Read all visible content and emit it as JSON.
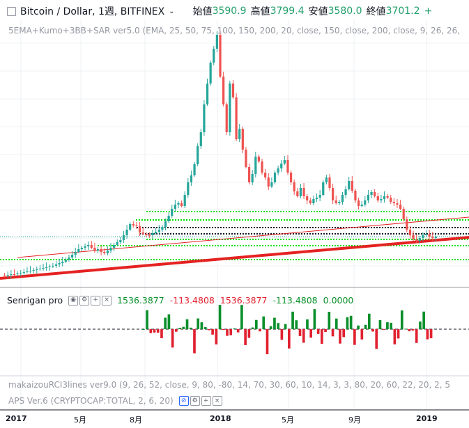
{
  "header": {
    "symbol": "Bitcoin / Dollar, 1週, BITFINEX",
    "dropdown_icon": "chevron-down-icon",
    "open_label": "始値",
    "open_value": "3590.9",
    "high_label": "高値",
    "high_value": "3799.4",
    "low_label": "安値",
    "low_value": "3580.0",
    "close_label": "終値",
    "close_value": "3701.2",
    "change_value": "+"
  },
  "main_indicator": "5EMA+Kumo+3BB+SAR ver5.0 (EMA, 25, 50, 75, 100, 150, 200, 20, close, 150, close, 200, close, 9, 26, 26,",
  "pane2": {
    "name": "Senrigan pro",
    "icons": [
      "eye-icon",
      "gear-icon",
      "plus-icon",
      "close-icon"
    ],
    "values": [
      {
        "text": "1536.3877",
        "color": "green"
      },
      {
        "text": "-113.4808",
        "color": "red"
      },
      {
        "text": "1536.3877",
        "color": "red"
      },
      {
        "text": "-113.4808",
        "color": "green"
      },
      {
        "text": "0.0000",
        "color": "green"
      }
    ]
  },
  "ind3": "makaizouRCI3lines ver9.0 (9, 26, 52, close, 9, 80, -80, 14, 70, 30, 60, 10, 14, 3, 3, 80, 20, 60, 22, 20, 2, 5",
  "ind4": {
    "name": "APS Ver.6 (CRYPTOCAP:TOTAL, 2, 6, 20)",
    "icons": [
      "hidden-eye-icon",
      "gear-icon",
      "plus-icon",
      "close-icon"
    ]
  },
  "xaxis": [
    {
      "label": "2017",
      "bold": true
    },
    {
      "label": "5月",
      "bold": false
    },
    {
      "label": "8月",
      "bold": false
    },
    {
      "label": "2018",
      "bold": true
    },
    {
      "label": "5月",
      "bold": false
    },
    {
      "label": "9月",
      "bold": false
    },
    {
      "label": "2019",
      "bold": true
    }
  ],
  "colors": {
    "up": "#26a69a",
    "down": "#ef5350",
    "hist_up": "#0a8f2a",
    "hist_down": "#e0202f",
    "trend": "#e52222",
    "dotted": "#00e000"
  }
}
